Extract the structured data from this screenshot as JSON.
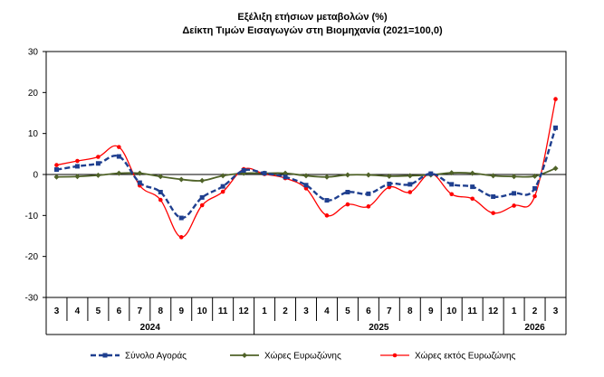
{
  "chart_data": {
    "type": "line",
    "title": "Εξέλιξη ετήσιων μεταβολών (%)",
    "subtitle": "Δείκτη Τιμών Εισαγωγών στη Βιομηχανία (2021=100,0)",
    "month_labels": [
      "3",
      "4",
      "5",
      "6",
      "7",
      "8",
      "9",
      "10",
      "11",
      "12",
      "1",
      "2",
      "3",
      "4",
      "5",
      "6",
      "7",
      "8",
      "9",
      "10",
      "11",
      "12",
      "1",
      "2",
      "3"
    ],
    "year_labels": [
      {
        "label": "2024",
        "from": 0,
        "to": 9
      },
      {
        "label": "2025",
        "from": 10,
        "to": 21
      },
      {
        "label": "2026",
        "from": 22,
        "to": 24
      }
    ],
    "ylim": [
      -30,
      30
    ],
    "yticks": [
      -30,
      -20,
      -10,
      0,
      10,
      20,
      30
    ],
    "grid": false,
    "legend_position": "bottom",
    "series": [
      {
        "name": "Σύνολο Αγοράς",
        "color": "#1f3f8f",
        "style": "dashed-square",
        "values": [
          1.2,
          2.0,
          2.7,
          4.4,
          -2.0,
          -4.3,
          -10.6,
          -5.6,
          -2.9,
          1.0,
          0.3,
          -0.6,
          -2.6,
          -6.3,
          -4.3,
          -4.7,
          -2.3,
          -2.4,
          0.2,
          -2.4,
          -3.0,
          -5.4,
          -4.6,
          -3.4,
          11.4
        ]
      },
      {
        "name": "Χώρες Ευρωζώνης",
        "color": "#4f6228",
        "style": "solid-diamond",
        "values": [
          -0.6,
          -0.5,
          -0.2,
          0.3,
          0.3,
          -0.5,
          -1.2,
          -1.5,
          -0.3,
          0.3,
          0.3,
          0.3,
          -0.3,
          -0.6,
          -0.1,
          -0.1,
          -0.4,
          -0.3,
          -0.1,
          0.4,
          0.3,
          -0.3,
          -0.5,
          -0.4,
          1.5
        ]
      },
      {
        "name": "Χώρες εκτός Ευρωζώνης",
        "color": "#ff0000",
        "style": "solid-circle",
        "values": [
          2.3,
          3.3,
          4.3,
          6.7,
          -2.7,
          -6.2,
          -15.3,
          -7.5,
          -4.2,
          1.3,
          0.1,
          -0.9,
          -3.4,
          -10.0,
          -7.3,
          -7.8,
          -3.1,
          -4.3,
          0.2,
          -4.8,
          -5.9,
          -9.4,
          -7.6,
          -5.3,
          18.4
        ]
      }
    ]
  }
}
